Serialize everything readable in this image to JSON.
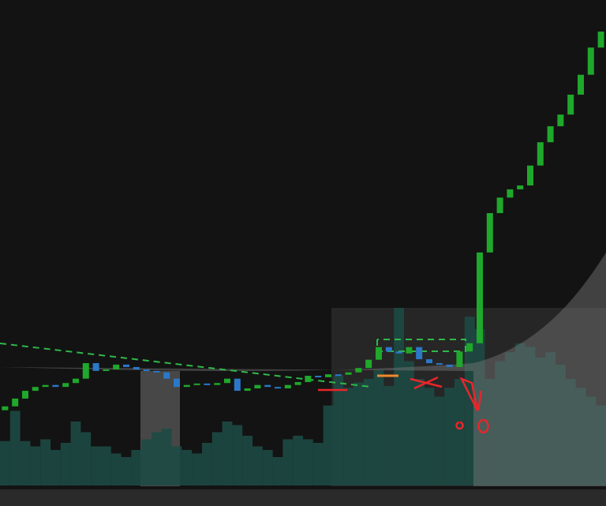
{
  "chart_data": {
    "type": "candlestick",
    "open": [
      15.5,
      16.3,
      17.9,
      19.5,
      20.3,
      20.7,
      20.3,
      21.1,
      22,
      25.2,
      23.6,
      23.9,
      24.9,
      24.4,
      23.9,
      23.6,
      23.3,
      22,
      20.3,
      20.7,
      21,
      20.7,
      21.1,
      22,
      19.5,
      20,
      20.7,
      20.3,
      20,
      20.7,
      21.3,
      22.6,
      22.3,
      22.9,
      22.8,
      23.3,
      24.2,
      25.9,
      28.5,
      27.6,
      27.2,
      28.5,
      26,
      25.2,
      24.9,
      24.4,
      27.6,
      29.3,
      48,
      56.1,
      59.3,
      61,
      61.8,
      65.9,
      70.7,
      74,
      76.4,
      80.5,
      84.6,
      90.2
    ],
    "close": [
      16.3,
      17.9,
      19.5,
      20.3,
      20.7,
      20.3,
      21.1,
      22,
      25.2,
      23.6,
      23.9,
      24.9,
      24.4,
      23.9,
      23.6,
      23.3,
      22,
      20.3,
      20.7,
      21,
      20.7,
      21.1,
      22,
      19.5,
      20,
      20.7,
      20.3,
      20,
      20.7,
      21.3,
      22.6,
      22.3,
      22.9,
      22.8,
      23.3,
      24.2,
      25.9,
      28.5,
      27.6,
      27.2,
      28.5,
      26,
      25.2,
      24.9,
      24.4,
      27.6,
      29.3,
      48,
      56.1,
      59.3,
      61,
      61.8,
      65.9,
      70.7,
      74,
      76.4,
      80.5,
      84.6,
      90.2,
      93.5
    ],
    "volume": [
      25,
      42,
      25,
      22,
      26,
      20,
      24,
      36,
      30,
      22,
      22,
      18,
      16,
      20,
      26,
      30,
      32,
      22,
      20,
      18,
      24,
      30,
      36,
      34,
      28,
      22,
      20,
      16,
      26,
      28,
      26,
      24,
      45,
      62,
      55,
      58,
      60,
      65,
      56,
      100,
      70,
      60,
      55,
      50,
      55,
      60,
      95,
      88,
      60,
      70,
      75,
      80,
      78,
      72,
      75,
      68,
      60,
      55,
      50,
      45
    ],
    "up_color": "#1fa82b",
    "down_color": "#2b78c8",
    "volume_color": "#1e4a44",
    "ylim": [
      0,
      100
    ],
    "y2lim": [
      0,
      100
    ]
  }
}
